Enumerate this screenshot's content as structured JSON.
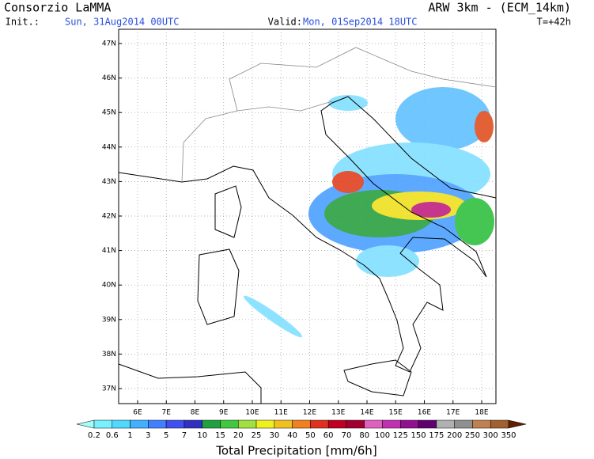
{
  "header": {
    "title": "Consorzio LaMMA",
    "init_label": "Init.:",
    "init_value": "Sun, 31Aug2014 00UTC",
    "valid_label": "Valid:",
    "valid_value": "Mon, 01Sep2014 18UTC",
    "model": "ARW 3km - (ECM_14km)",
    "lead": "T=+42h"
  },
  "map": {
    "lat_labels": [
      "47N",
      "46N",
      "45N",
      "44N",
      "43N",
      "42N",
      "41N",
      "40N",
      "39N",
      "38N",
      "37N"
    ],
    "lon_labels": [
      "6E",
      "7E",
      "8E",
      "9E",
      "10E",
      "11E",
      "12E",
      "13E",
      "14E",
      "15E",
      "16E",
      "17E",
      "18E"
    ]
  },
  "colorbar": {
    "labels": [
      "0.2",
      "0.6",
      "1",
      "3",
      "5",
      "7",
      "10",
      "15",
      "20",
      "25",
      "30",
      "40",
      "50",
      "60",
      "70",
      "80",
      "100",
      "125",
      "150",
      "175",
      "200",
      "250",
      "300",
      "350"
    ],
    "colors": [
      "#a0fffa",
      "#78f0ff",
      "#50d8ff",
      "#40b0ff",
      "#4080ff",
      "#4050f0",
      "#3030c0",
      "#20a040",
      "#40c840",
      "#a0e040",
      "#f0f020",
      "#f0c020",
      "#f08020",
      "#e03020",
      "#c00020",
      "#a00030",
      "#e060c0",
      "#c030b0",
      "#901090",
      "#600070",
      "#b0b0b0",
      "#909090",
      "#c08050",
      "#a06030",
      "#804010",
      "#602000"
    ],
    "title": "Total Precipitation [mm/6h]"
  }
}
